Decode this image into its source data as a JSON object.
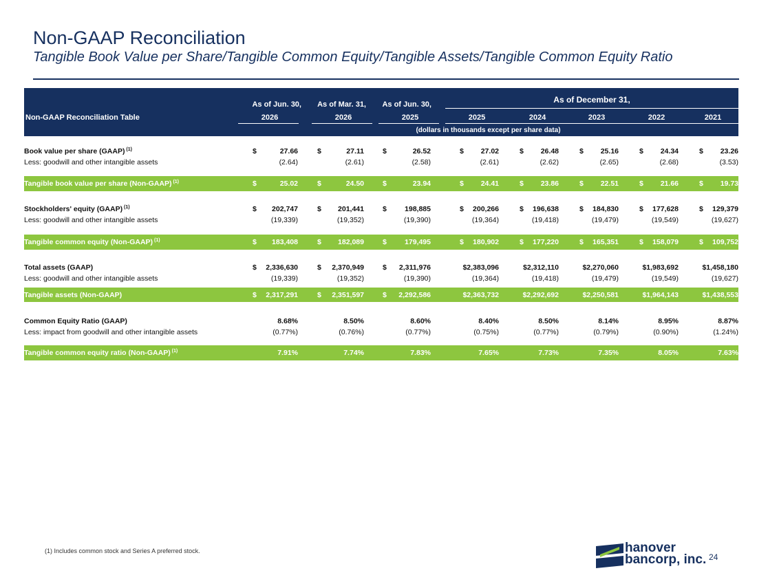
{
  "title": "Non-GAAP Reconciliation",
  "subtitle": "Tangible Book Value per Share/Tangible Common Equity/Tangible Assets/Tangible Common Equity Ratio",
  "table": {
    "header_label": "Non-GAAP Reconciliation Table",
    "col_groups": [
      "As of Jun. 30,",
      "As of Mar. 31,",
      "As of Jun. 30,"
    ],
    "december_group": "As of December 31,",
    "col_years": [
      "2026",
      "2026",
      "2025",
      "2025",
      "2024",
      "2023",
      "2022",
      "2021"
    ],
    "units_note": "(dollars in thousands except per share data)",
    "currency_symbol": "$",
    "superscript": "(1)",
    "rows": [
      {
        "label": "Book value per share (GAAP)",
        "values": [
          "27.66",
          "27.11",
          "26.52",
          "27.02",
          "26.48",
          "25.16",
          "24.34",
          "23.26"
        ]
      },
      {
        "label": "Less: goodwill and other intangible assets",
        "values": [
          "(2.64)",
          "(2.61)",
          "(2.58)",
          "(2.61)",
          "(2.62)",
          "(2.65)",
          "(2.68)",
          "(3.53)"
        ]
      },
      {
        "label": "Tangible book value per share (Non-GAAP)",
        "values": [
          "25.02",
          "24.50",
          "23.94",
          "24.41",
          "23.86",
          "22.51",
          "21.66",
          "19.73"
        ]
      },
      {
        "label": "Stockholders' equity (GAAP)",
        "values": [
          "202,747",
          "201,441",
          "198,885",
          "200,266",
          "196,638",
          "184,830",
          "177,628",
          "129,379"
        ]
      },
      {
        "label": "Less: goodwill and other intangible assets",
        "values": [
          "(19,339)",
          "(19,352)",
          "(19,390)",
          "(19,364)",
          "(19,418)",
          "(19,479)",
          "(19,549)",
          "(19,627)"
        ]
      },
      {
        "label": "Tangible common equity (Non-GAAP)",
        "values": [
          "183,408",
          "182,089",
          "179,495",
          "180,902",
          "177,220",
          "165,351",
          "158,079",
          "109,752"
        ]
      },
      {
        "label": "Total assets (GAAP)",
        "values": [
          "2,336,630",
          "2,370,949",
          "2,311,976",
          "$2,383,096",
          "$2,312,110",
          "$2,270,060",
          "$1,983,692",
          "$1,458,180"
        ]
      },
      {
        "label": "Less: goodwill and other intangible assets",
        "values": [
          "(19,339)",
          "(19,352)",
          "(19,390)",
          "(19,364)",
          "(19,418)",
          "(19,479)",
          "(19,549)",
          "(19,627)"
        ]
      },
      {
        "label": "Tangible assets (Non-GAAP)",
        "values": [
          "2,317,291",
          "2,351,597",
          "2,292,586",
          "$2,363,732",
          "$2,292,692",
          "$2,250,581",
          "$1,964,143",
          "$1,438,553"
        ]
      },
      {
        "label": "Common Equity Ratio (GAAP)",
        "values": [
          "8.68%",
          "8.50%",
          "8.60%",
          "8.40%",
          "8.50%",
          "8.14%",
          "8.95%",
          "8.87%"
        ]
      },
      {
        "label": "Less: impact from goodwill and other intangible assets",
        "values": [
          "(0.77%)",
          "(0.76%)",
          "(0.77%)",
          "(0.75%)",
          "(0.77%)",
          "(0.79%)",
          "(0.90%)",
          "(1.24%)"
        ]
      },
      {
        "label": "Tangible common equity ratio (Non-GAAP)",
        "values": [
          "7.91%",
          "7.74%",
          "7.83%",
          "7.65%",
          "7.73%",
          "7.35%",
          "8.05%",
          "7.63%"
        ]
      }
    ]
  },
  "footnote": "(1) Includes common stock and Series A preferred stock.",
  "logo": {
    "line1": "hanover",
    "line2": "bancorp, inc."
  },
  "page_number": "24",
  "colors": {
    "navy": "#16305f",
    "green": "#8dc63f"
  }
}
